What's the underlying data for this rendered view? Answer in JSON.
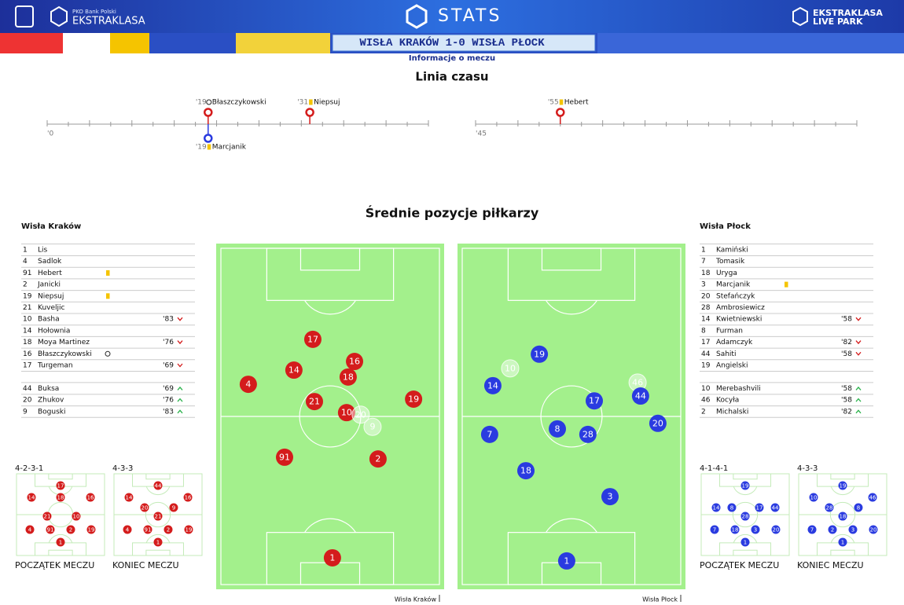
{
  "header": {
    "bank": "PKO Bank Polski",
    "league": "EKSTRAKLASA",
    "stats": "STATS",
    "livepark_top": "EKSTRAKLASA",
    "livepark_bottom": "LIVE PARK"
  },
  "match": {
    "title": "WISŁA KRAKÓW 1-0 WISŁA PŁOCK",
    "subtitle": "Informacje o meczu"
  },
  "timeline": {
    "title": "Linia czasu",
    "halves": [
      {
        "start": "'0",
        "range": [
          0,
          45
        ],
        "events": [
          {
            "minute": 19,
            "minute_label": "'19",
            "name": "Błaszczykowski",
            "team": "home",
            "kind": "goal"
          },
          {
            "minute": 31,
            "minute_label": "'31",
            "name": "Niepsuj",
            "team": "home",
            "kind": "yellow"
          },
          {
            "minute": 19,
            "minute_label": "'19",
            "name": "Marcjanik",
            "team": "away",
            "kind": "yellow"
          }
        ]
      },
      {
        "start": "'45",
        "range": [
          45,
          90
        ],
        "events": [
          {
            "minute": 55,
            "minute_label": "'55",
            "name": "Hebert",
            "team": "home",
            "kind": "yellow"
          }
        ]
      }
    ]
  },
  "positions": {
    "title": "Średnie pozycje piłkarzy",
    "home": {
      "name": "Wisła Kraków",
      "color": "#d41c1c",
      "starters": [
        {
          "number": 1,
          "name": "Lis"
        },
        {
          "number": 4,
          "name": "Sadlok"
        },
        {
          "number": 91,
          "name": "Hebert",
          "card": "yellow"
        },
        {
          "number": 2,
          "name": "Janicki"
        },
        {
          "number": 19,
          "name": "Niepsuj",
          "card": "yellow"
        },
        {
          "number": 21,
          "name": "Kuveljic"
        },
        {
          "number": 10,
          "name": "Basha",
          "sub": "'83",
          "dir": "out"
        },
        {
          "number": 14,
          "name": "Hołownia"
        },
        {
          "number": 18,
          "name": "Moya Martinez",
          "sub": "'76",
          "dir": "out"
        },
        {
          "number": 16,
          "name": "Błaszczykowski",
          "card": "goal"
        },
        {
          "number": 17,
          "name": "Turgeman",
          "sub": "'69",
          "dir": "out"
        }
      ],
      "substitutes": [
        {
          "number": 44,
          "name": "Buksa",
          "sub": "'69",
          "dir": "in"
        },
        {
          "number": 20,
          "name": "Zhukov",
          "sub": "'76",
          "dir": "in"
        },
        {
          "number": 9,
          "name": "Boguski",
          "sub": "'83",
          "dir": "in"
        }
      ],
      "pitch": [
        {
          "number": 17,
          "x": 42.4,
          "y": 27.7
        },
        {
          "number": 14,
          "x": 34.1,
          "y": 36.6
        },
        {
          "number": 16,
          "x": 60.7,
          "y": 34.1
        },
        {
          "number": 18,
          "x": 57.9,
          "y": 38.6
        },
        {
          "number": 4,
          "x": 14.1,
          "y": 40.7
        },
        {
          "number": 21,
          "x": 43.1,
          "y": 45.7
        },
        {
          "number": 10,
          "x": 57.2,
          "y": 48.9
        },
        {
          "number": 20,
          "x": 63.4,
          "y": 49.5,
          "faded": true
        },
        {
          "number": 9,
          "x": 68.6,
          "y": 53.0,
          "faded": true
        },
        {
          "number": 19,
          "x": 86.6,
          "y": 45.0
        },
        {
          "number": 91,
          "x": 30.0,
          "y": 61.8
        },
        {
          "number": 2,
          "x": 71.0,
          "y": 62.3
        },
        {
          "number": 1,
          "x": 51.0,
          "y": 90.9
        }
      ],
      "formations": [
        {
          "formation": "4-2-3-1",
          "caption": "POCZĄTEK MECZU",
          "players": [
            {
              "number": 17,
              "x": 50,
              "y": 15.7
            },
            {
              "number": 14,
              "x": 18.1,
              "y": 29.6
            },
            {
              "number": 18,
              "x": 50,
              "y": 29.6
            },
            {
              "number": 16,
              "x": 82.8,
              "y": 29.6
            },
            {
              "number": 21,
              "x": 35.3,
              "y": 51.9
            },
            {
              "number": 10,
              "x": 67.2,
              "y": 51.9
            },
            {
              "number": 4,
              "x": 16.4,
              "y": 67.6
            },
            {
              "number": 91,
              "x": 38.8,
              "y": 67.6
            },
            {
              "number": 2,
              "x": 61.2,
              "y": 67.6
            },
            {
              "number": 19,
              "x": 83.6,
              "y": 67.6
            },
            {
              "number": 1,
              "x": 50,
              "y": 82.4
            }
          ]
        },
        {
          "formation": "4-3-3",
          "caption": "KONIEC MECZU",
          "players": [
            {
              "number": 44,
              "x": 50,
              "y": 15.7
            },
            {
              "number": 14,
              "x": 18.1,
              "y": 29.6
            },
            {
              "number": 16,
              "x": 82.8,
              "y": 29.6
            },
            {
              "number": 20,
              "x": 35.3,
              "y": 41.7
            },
            {
              "number": 9,
              "x": 67.2,
              "y": 41.7
            },
            {
              "number": 21,
              "x": 50,
              "y": 51.9
            },
            {
              "number": 4,
              "x": 16.4,
              "y": 67.6
            },
            {
              "number": 91,
              "x": 38.8,
              "y": 67.6
            },
            {
              "number": 2,
              "x": 61.2,
              "y": 67.6
            },
            {
              "number": 19,
              "x": 83.6,
              "y": 67.6
            },
            {
              "number": 1,
              "x": 50,
              "y": 82.4
            }
          ]
        }
      ]
    },
    "away": {
      "name": "Wisła Płock",
      "color": "#2a3be0",
      "starters": [
        {
          "number": 1,
          "name": "Kamiński"
        },
        {
          "number": 7,
          "name": "Tomasik"
        },
        {
          "number": 18,
          "name": "Uryga"
        },
        {
          "number": 3,
          "name": "Marcjanik",
          "card": "yellow"
        },
        {
          "number": 20,
          "name": "Stefańczyk"
        },
        {
          "number": 28,
          "name": "Ambrosiewicz"
        },
        {
          "number": 14,
          "name": "Kwietniewski",
          "sub": "'58",
          "dir": "out"
        },
        {
          "number": 8,
          "name": "Furman"
        },
        {
          "number": 17,
          "name": "Adamczyk",
          "sub": "'82",
          "dir": "out"
        },
        {
          "number": 44,
          "name": "Sahiti",
          "sub": "'58",
          "dir": "out"
        },
        {
          "number": 19,
          "name": "Angielski"
        }
      ],
      "substitutes": [
        {
          "number": 10,
          "name": "Merebashvili",
          "sub": "'58",
          "dir": "in"
        },
        {
          "number": 46,
          "name": "Kocyła",
          "sub": "'58",
          "dir": "in"
        },
        {
          "number": 2,
          "name": "Michalski",
          "sub": "'82",
          "dir": "in"
        }
      ],
      "pitch": [
        {
          "number": 19,
          "x": 35.9,
          "y": 32.0
        },
        {
          "number": 10,
          "x": 23.1,
          "y": 36.1,
          "faded": true
        },
        {
          "number": 14,
          "x": 15.5,
          "y": 41.1
        },
        {
          "number": 46,
          "x": 79.0,
          "y": 40.2,
          "faded": true
        },
        {
          "number": 44,
          "x": 80.3,
          "y": 44.1
        },
        {
          "number": 17,
          "x": 60.0,
          "y": 45.5
        },
        {
          "number": 20,
          "x": 87.9,
          "y": 52.0
        },
        {
          "number": 7,
          "x": 14.1,
          "y": 55.2
        },
        {
          "number": 8,
          "x": 43.8,
          "y": 53.6
        },
        {
          "number": 28,
          "x": 57.2,
          "y": 55.2
        },
        {
          "number": 18,
          "x": 30.0,
          "y": 65.7
        },
        {
          "number": 3,
          "x": 66.9,
          "y": 73.2
        },
        {
          "number": 1,
          "x": 47.9,
          "y": 91.8
        }
      ],
      "formations": [
        {
          "formation": "4-1-4-1",
          "caption": "POCZĄTEK MECZU",
          "players": [
            {
              "number": 19,
              "x": 50,
              "y": 15.7
            },
            {
              "number": 14,
              "x": 18.1,
              "y": 41.7
            },
            {
              "number": 8,
              "x": 35.3,
              "y": 41.7
            },
            {
              "number": 17,
              "x": 65.5,
              "y": 41.7
            },
            {
              "number": 44,
              "x": 82.8,
              "y": 41.7
            },
            {
              "number": 28,
              "x": 50,
              "y": 51.9
            },
            {
              "number": 7,
              "x": 16.4,
              "y": 67.6
            },
            {
              "number": 18,
              "x": 38.8,
              "y": 67.6
            },
            {
              "number": 3,
              "x": 61.2,
              "y": 67.6
            },
            {
              "number": 20,
              "x": 83.6,
              "y": 67.6
            },
            {
              "number": 1,
              "x": 50,
              "y": 82.4
            }
          ]
        },
        {
          "formation": "4-3-3",
          "caption": "KONIEC MECZU",
          "players": [
            {
              "number": 19,
              "x": 50,
              "y": 15.7
            },
            {
              "number": 10,
              "x": 18.1,
              "y": 29.6
            },
            {
              "number": 46,
              "x": 82.8,
              "y": 29.6
            },
            {
              "number": 28,
              "x": 35.3,
              "y": 41.7
            },
            {
              "number": 8,
              "x": 67.2,
              "y": 41.7
            },
            {
              "number": 18,
              "x": 50,
              "y": 51.9
            },
            {
              "number": 7,
              "x": 16.4,
              "y": 67.6
            },
            {
              "number": 2,
              "x": 38.8,
              "y": 67.6
            },
            {
              "number": 3,
              "x": 61.2,
              "y": 67.6
            },
            {
              "number": 20,
              "x": 83.6,
              "y": 67.6
            },
            {
              "number": 1,
              "x": 50,
              "y": 82.4
            }
          ]
        }
      ]
    }
  }
}
